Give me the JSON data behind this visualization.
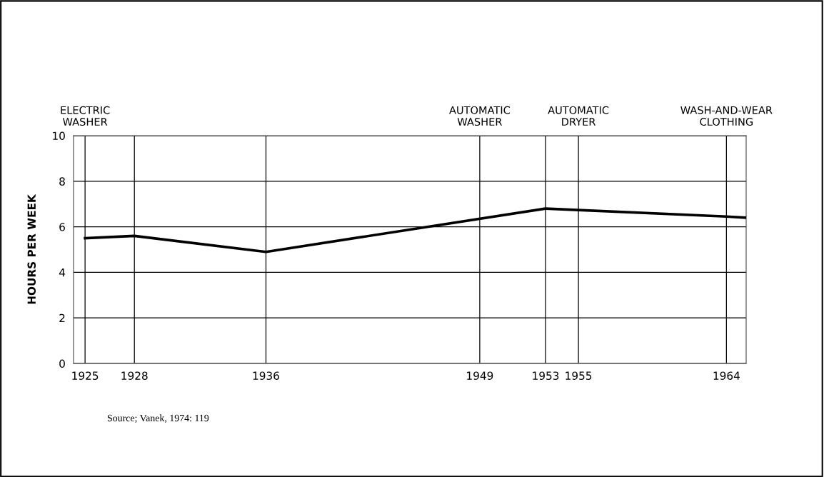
{
  "chart_data": {
    "type": "line",
    "ylabel": "HOURS PER WEEK",
    "x": [
      1925,
      1928,
      1936,
      1953,
      1964,
      1965.2
    ],
    "series": [
      {
        "color": "#000000",
        "values": [
          5.5,
          5.6,
          4.9,
          6.8,
          6.45,
          6.4
        ]
      }
    ],
    "xlim": [
      1924.3,
      1965.2
    ],
    "xticks": [
      1925,
      1928,
      1936,
      1949,
      1953,
      1955,
      1964
    ],
    "ylim": [
      0,
      10
    ],
    "yticks": [
      0,
      2,
      4,
      6,
      8,
      10
    ],
    "grid": "y",
    "marker": "none",
    "line_style": "solid",
    "ref_lines": [
      {
        "axis": "x",
        "value": 1925,
        "label": "ELECTRIC\nWASHER"
      },
      {
        "axis": "x",
        "value": 1928,
        "label": null
      },
      {
        "axis": "x",
        "value": 1936,
        "label": null
      },
      {
        "axis": "x",
        "value": 1949,
        "label": "AUTOMATIC\nWASHER"
      },
      {
        "axis": "x",
        "value": 1953,
        "label": null
      },
      {
        "axis": "x",
        "value": 1955,
        "label": "AUTOMATIC\nDRYER"
      },
      {
        "axis": "x",
        "value": 1964,
        "label": "WASH-AND-WEAR\nCLOTHING"
      }
    ],
    "annotations": [
      "Source; Vanek, 1974: 119"
    ]
  }
}
